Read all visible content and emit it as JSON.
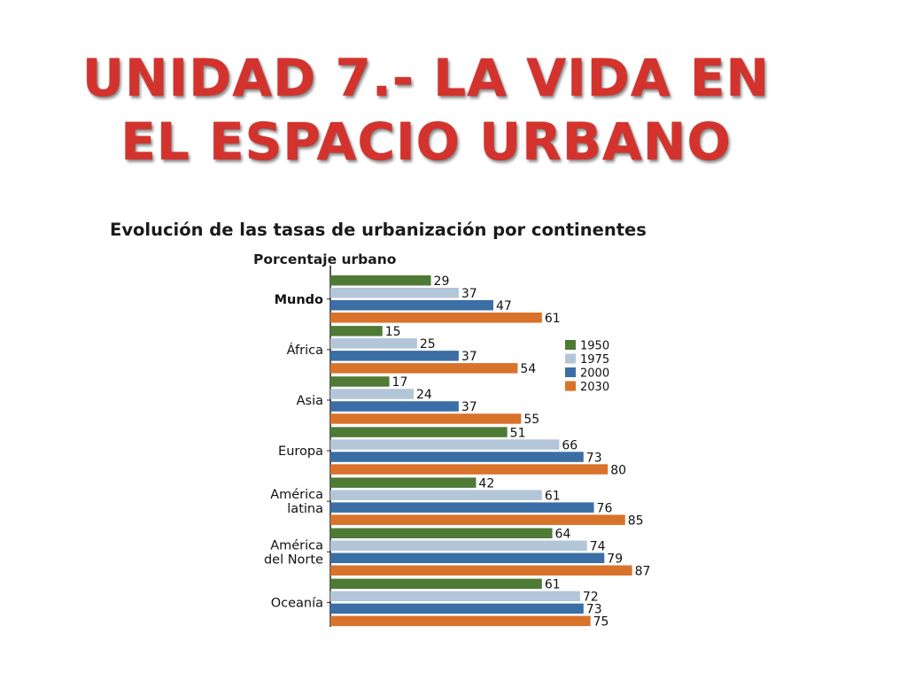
{
  "slide": {
    "title_line1": "UNIDAD 7.- LA VIDA EN",
    "title_line2": "EL ESPACIO URBANO"
  },
  "chart_data": {
    "type": "bar",
    "orientation": "horizontal",
    "title": "Evolución de las tasas de urbanización por continentes",
    "subtitle": "Porcentaje urbano",
    "categories": [
      [
        "Mundo"
      ],
      [
        "África"
      ],
      [
        "Asia"
      ],
      [
        "Europa"
      ],
      [
        "América",
        "latina"
      ],
      [
        "América",
        "del Norte"
      ],
      [
        "Oceanía"
      ]
    ],
    "bold_categories": [
      "Mundo"
    ],
    "series": [
      {
        "name": "1950",
        "color": "#4e7a35",
        "values": [
          29,
          15,
          17,
          51,
          42,
          64,
          61
        ]
      },
      {
        "name": "1975",
        "color": "#b3c6d8",
        "values": [
          37,
          25,
          24,
          66,
          61,
          74,
          72
        ]
      },
      {
        "name": "2000",
        "color": "#3a6ea5",
        "values": [
          47,
          37,
          37,
          73,
          76,
          79,
          73
        ]
      },
      {
        "name": "2030",
        "color": "#d9722a",
        "values": [
          61,
          54,
          55,
          80,
          85,
          87,
          75
        ]
      }
    ],
    "xlim": [
      0,
      100
    ],
    "grid": false,
    "legend_position": "right"
  }
}
